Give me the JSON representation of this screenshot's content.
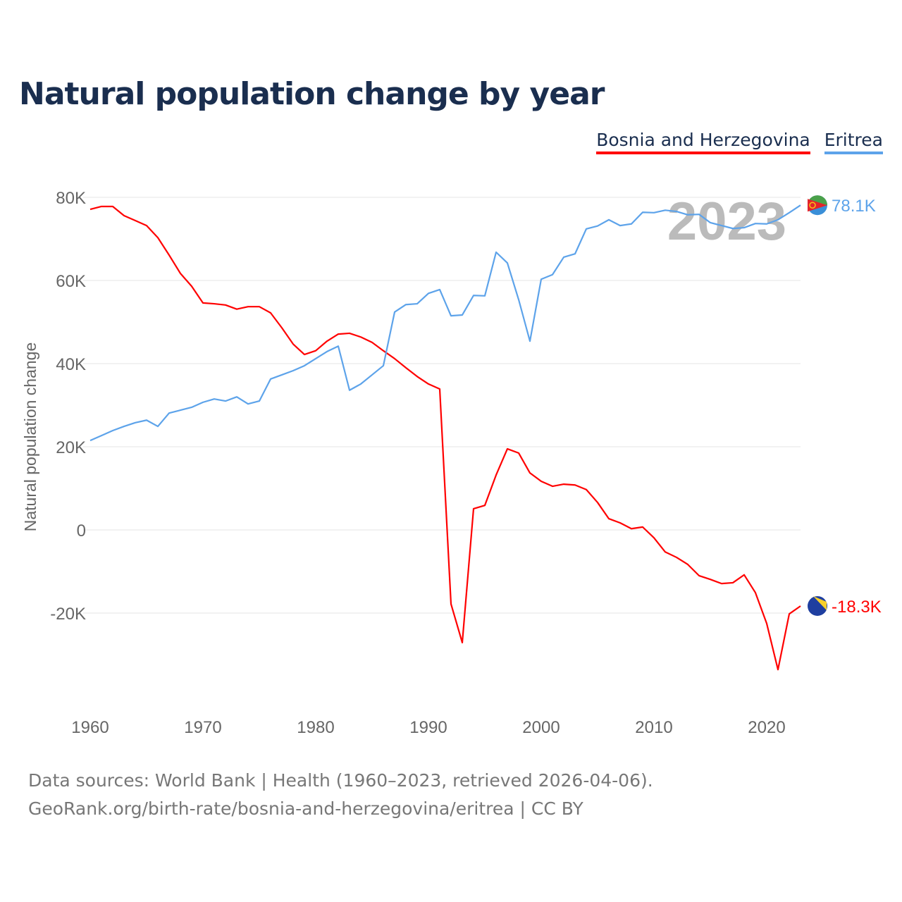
{
  "chart_data": {
    "type": "line",
    "title": "Natural population change by year",
    "ylabel": "Natural population change",
    "xlabel": "",
    "year_label": "2023",
    "xlim": [
      1960,
      2023
    ],
    "ylim": [
      -40000,
      80000
    ],
    "yticks": [
      {
        "v": 80000,
        "label": "80K"
      },
      {
        "v": 60000,
        "label": "60K"
      },
      {
        "v": 40000,
        "label": "40K"
      },
      {
        "v": 20000,
        "label": "20K"
      },
      {
        "v": 0,
        "label": "0"
      },
      {
        "v": -20000,
        "label": "-20K"
      }
    ],
    "xticks": [
      {
        "v": 1960,
        "label": "1960"
      },
      {
        "v": 1970,
        "label": "1970"
      },
      {
        "v": 1980,
        "label": "1980"
      },
      {
        "v": 1990,
        "label": "1990"
      },
      {
        "v": 2000,
        "label": "2000"
      },
      {
        "v": 2010,
        "label": "2010"
      },
      {
        "v": 2020,
        "label": "2020"
      }
    ],
    "grid": true,
    "legend_position": "top-right",
    "x_start": 1960,
    "series": [
      {
        "name": "Bosnia and Herzegovina",
        "color": "#ff0000",
        "end_label": "-18.3K",
        "flag": "bosnia-flag",
        "values": [
          77.1,
          77.8,
          77.8,
          75.6,
          74.4,
          73.2,
          70.3,
          66.1,
          61.7,
          58.6,
          54.6,
          54.4,
          54.1,
          53.1,
          53.7,
          53.7,
          52.2,
          48.6,
          44.7,
          42.2,
          43.1,
          45.4,
          47.1,
          47.3,
          46.4,
          45.1,
          43.1,
          41.2,
          39.0,
          36.9,
          35.1,
          33.9,
          -17.8,
          -27.1,
          5.1,
          5.9,
          13.2,
          19.5,
          18.5,
          13.7,
          11.7,
          10.5,
          11.0,
          10.8,
          9.7,
          6.6,
          2.7,
          1.7,
          0.3,
          0.7,
          -1.9,
          -5.3,
          -6.6,
          -8.3,
          -11.0,
          -11.9,
          -12.9,
          -12.7,
          -10.8,
          -15.1,
          -22.5,
          -33.6,
          -20.2,
          -18.3
        ]
      },
      {
        "name": "Eritrea",
        "color": "#5da3ea",
        "end_label": "78.1K",
        "flag": "eritrea-flag",
        "values": [
          21.5,
          22.7,
          23.9,
          24.9,
          25.8,
          26.4,
          24.9,
          28.1,
          28.8,
          29.5,
          30.7,
          31.5,
          31.0,
          32.0,
          30.3,
          31.0,
          36.3,
          37.3,
          38.3,
          39.5,
          41.2,
          42.9,
          44.2,
          33.6,
          35.1,
          37.3,
          39.5,
          52.4,
          54.2,
          54.4,
          56.9,
          57.8,
          51.5,
          51.7,
          56.4,
          56.3,
          66.8,
          64.2,
          55.4,
          45.4,
          60.3,
          61.4,
          65.6,
          66.4,
          72.4,
          73.1,
          74.6,
          73.2,
          73.6,
          76.4,
          76.3,
          76.9,
          76.6,
          75.8,
          75.9,
          73.9,
          73.2,
          72.5,
          72.7,
          73.7,
          73.6,
          74.6,
          76.3,
          78.1
        ]
      }
    ],
    "value_unit": "thousands"
  },
  "footer": {
    "line1": "Data sources: World Bank | Health (1960–2023, retrieved 2026-04-06).",
    "line2": "GeoRank.org/birth-rate/bosnia-and-herzegovina/eritrea | CC BY"
  }
}
